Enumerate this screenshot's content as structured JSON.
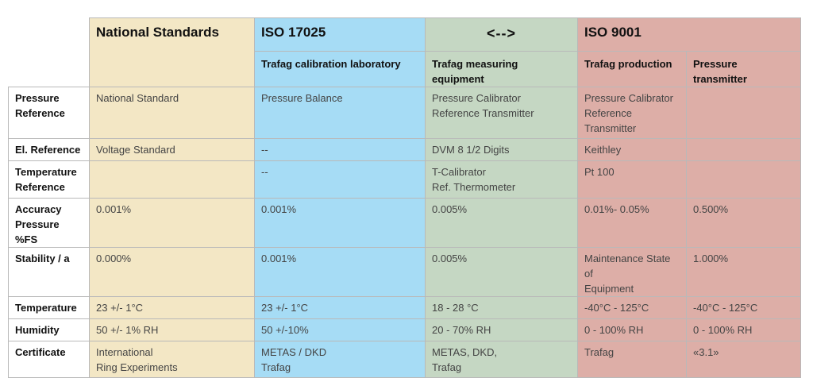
{
  "header": {
    "national_standards": "National Standards",
    "iso17025": "ISO 17025",
    "arrow": "<-->",
    "iso9001": "ISO 9001",
    "sub_lab": "Trafag calibration laboratory",
    "sub_measuring": "Trafag measuring equipment",
    "sub_production": "Trafag production",
    "sub_transmitter": "Pressure transmitter"
  },
  "rows": [
    {
      "label": "Pressure\nReference",
      "cells": [
        "National Standard",
        "Pressure Balance",
        "Pressure Calibrator\nReference Transmitter",
        "Pressure Calibrator\nReference\nTransmitter",
        ""
      ]
    },
    {
      "label": "El. Reference",
      "cells": [
        "Voltage Standard",
        "--",
        "DVM 8 1/2 Digits",
        "Keithley",
        ""
      ]
    },
    {
      "label": "Temperature\nReference",
      "cells": [
        "",
        "--",
        "T-Calibrator\nRef. Thermometer",
        "Pt 100",
        ""
      ]
    },
    {
      "label": "Accuracy\nPressure %FS",
      "cells": [
        "0.001%",
        "0.001%",
        "0.005%",
        "0.01%- 0.05%",
        "0.500%"
      ]
    },
    {
      "label": "Stability / a",
      "cells": [
        "0.000%",
        "0.001%",
        "0.005%",
        "Maintenance State of\nEquipment",
        "1.000%"
      ]
    },
    {
      "label": "Temperature",
      "cells": [
        "23 +/- 1°C",
        "23 +/- 1°C",
        "18 - 28 °C",
        "-40°C - 125°C",
        "-40°C - 125°C"
      ]
    },
    {
      "label": "Humidity",
      "cells": [
        "50 +/- 1% RH",
        "50 +/-10%",
        "20 - 70% RH",
        "0 - 100% RH",
        "0 - 100% RH"
      ]
    },
    {
      "label": "Certificate",
      "cells": [
        "International\nRing Experiments",
        "METAS / DKD\nTrafag",
        "METAS, DKD,\nTrafag",
        "Trafag",
        "«3.1»"
      ]
    }
  ]
}
